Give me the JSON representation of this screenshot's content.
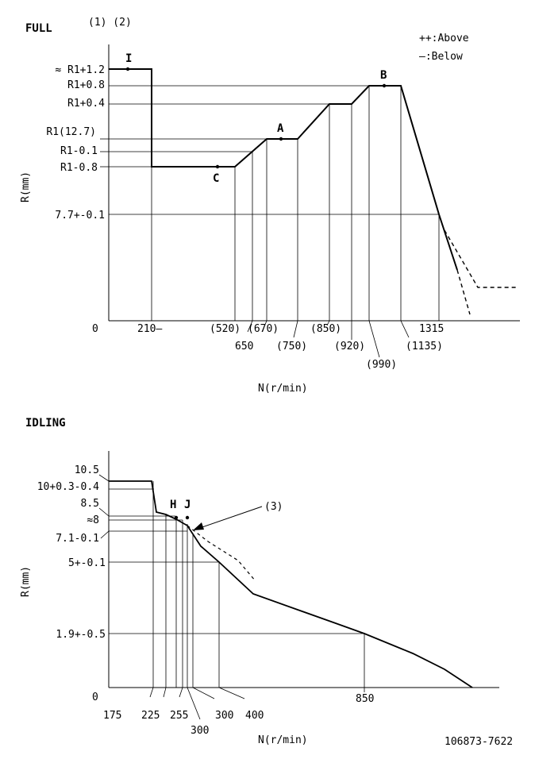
{
  "full": {
    "title": "FULL",
    "notes": "(1) (2)",
    "legend": {
      "above": "++:Above",
      "below": "—:Below"
    },
    "ylabel": "R(mm)",
    "xlabel": "N(r/min)",
    "origin": "0",
    "ylabels": [
      "≈ R1+1.2",
      "R1+0.8",
      "R1+0.4",
      "R1(12.7)",
      "R1-0.1",
      "R1-0.8",
      "7.7+-0.1"
    ],
    "xlabels": [
      "210—",
      "(520)",
      "(670)",
      "650",
      "(750)",
      "(850)",
      "(920)",
      "(990)",
      "(1135)",
      "1315"
    ],
    "points": [
      "I",
      "C",
      "A",
      "B"
    ]
  },
  "idling": {
    "title": "IDLING",
    "ylabel": "R(mm)",
    "xlabel": "N(r/min)",
    "origin": "0",
    "ylabels": [
      "10.5",
      "10+0.3-0.4",
      "8.5",
      "≈8",
      "7.1-0.1",
      "5+-0.1",
      "1.9+-0.5"
    ],
    "xlabels": [
      "175",
      "225",
      "255",
      "300",
      "300",
      "400",
      "850"
    ],
    "points": [
      "H",
      "J"
    ],
    "callout": "(3)"
  },
  "code": "106873-7622"
}
